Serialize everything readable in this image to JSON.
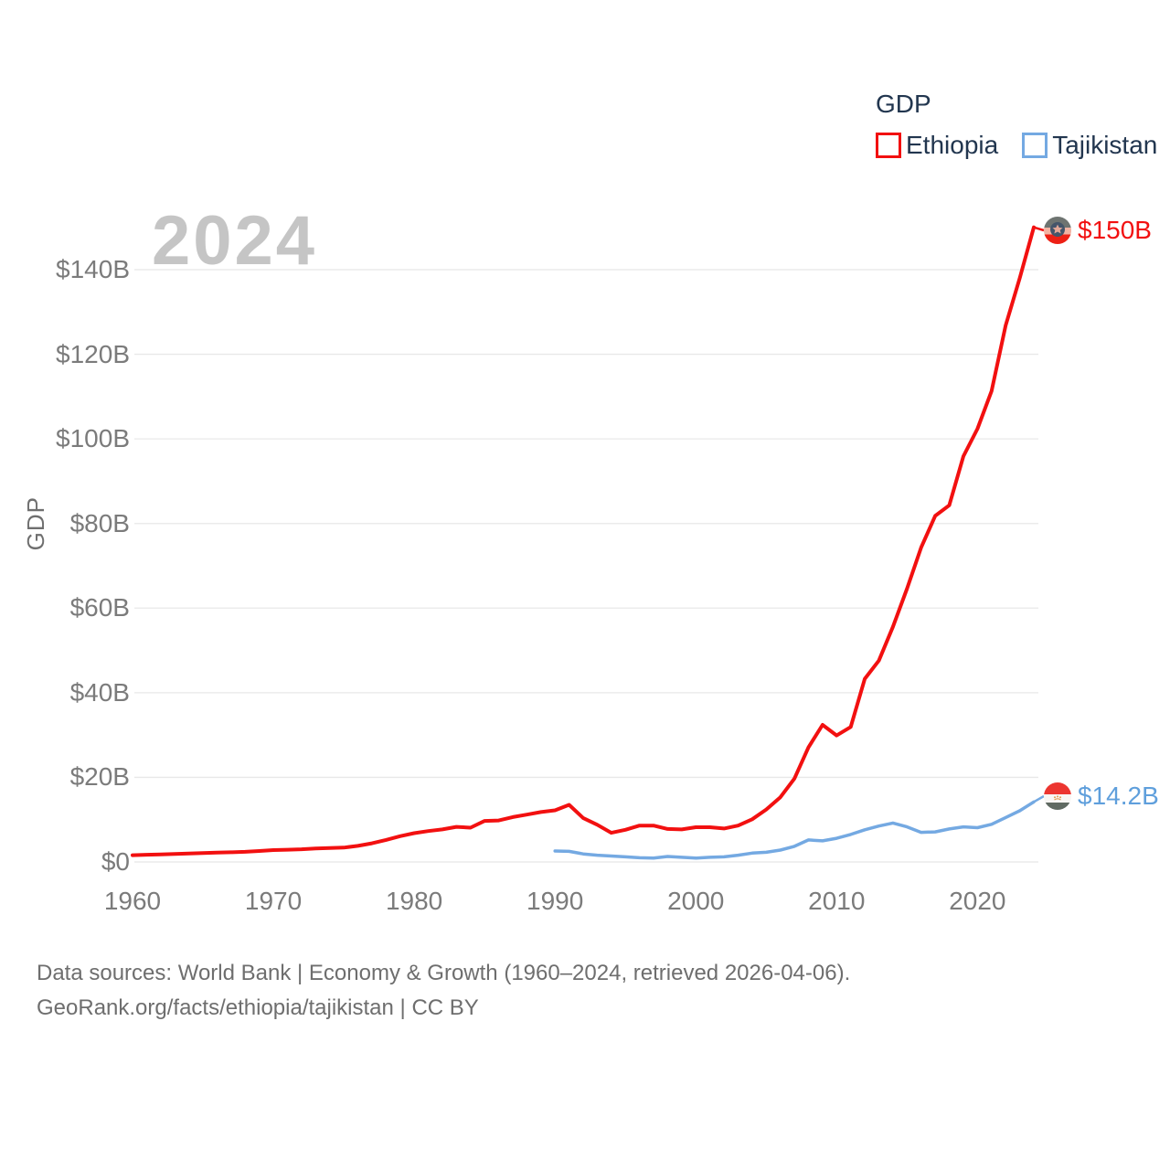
{
  "watermark": "2024",
  "legend": {
    "title": "GDP",
    "items": [
      {
        "label": "Ethiopia",
        "color": "#f21010"
      },
      {
        "label": "Tajikistan",
        "color": "#74a9e2"
      }
    ]
  },
  "y_axis": {
    "title": "GDP",
    "ticks": [
      "$0",
      "$20B",
      "$40B",
      "$60B",
      "$80B",
      "$100B",
      "$120B",
      "$140B"
    ]
  },
  "x_axis": {
    "ticks": [
      "1960",
      "1970",
      "1980",
      "1990",
      "2000",
      "2010",
      "2020"
    ]
  },
  "end_labels": [
    {
      "series": "Ethiopia",
      "text": "$150B",
      "color": "#f21010",
      "flag_icon": "ethiopia-flag"
    },
    {
      "series": "Tajikistan",
      "text": "$14.2B",
      "color": "#5f9fdc",
      "flag_icon": "tajikistan-flag"
    }
  ],
  "footer": {
    "line1": "Data sources: World Bank | Economy & Growth (1960–2024, retrieved 2026-04-06).",
    "line2": "GeoRank.org/facts/ethiopia/tajikistan | CC BY"
  },
  "chart_data": {
    "type": "line",
    "title": "GDP",
    "ylabel": "GDP",
    "xlim": [
      1960,
      2024
    ],
    "ylim": [
      0,
      150
    ],
    "grid": true,
    "legend_position": "top-right",
    "y_ticks_billions": [
      0,
      20,
      40,
      60,
      80,
      100,
      120,
      140
    ],
    "x_tick_years": [
      1960,
      1970,
      1980,
      1990,
      2000,
      2010,
      2020
    ],
    "units": "USD billions, current",
    "series": [
      {
        "name": "Ethiopia",
        "color": "#f21010",
        "start_year": 1960,
        "end_label": "$150B",
        "values_billions": [
          1.6,
          1.7,
          1.8,
          1.9,
          2.0,
          2.1,
          2.2,
          2.3,
          2.4,
          2.6,
          2.8,
          2.9,
          3.0,
          3.2,
          3.3,
          3.4,
          3.8,
          4.4,
          5.2,
          6.1,
          6.8,
          7.3,
          7.7,
          8.3,
          8.1,
          9.7,
          9.8,
          10.6,
          11.2,
          11.8,
          12.2,
          13.5,
          10.4,
          8.8,
          6.9,
          7.6,
          8.6,
          8.6,
          7.8,
          7.7,
          8.2,
          8.2,
          7.9,
          8.6,
          10.1,
          12.4,
          15.3,
          19.7,
          27.1,
          32.4,
          29.9,
          31.9,
          43.3,
          47.6,
          55.6,
          64.6,
          74.3,
          81.8,
          84.3,
          95.9,
          102.4,
          111.3,
          126.8,
          138.0,
          150.0
        ]
      },
      {
        "name": "Tajikistan",
        "color": "#74a9e2",
        "start_year": 1990,
        "end_label": "$14.2B",
        "values_billions": [
          2.6,
          2.5,
          1.9,
          1.6,
          1.4,
          1.2,
          1.0,
          0.9,
          1.3,
          1.1,
          0.9,
          1.1,
          1.2,
          1.6,
          2.1,
          2.3,
          2.8,
          3.7,
          5.2,
          5.0,
          5.6,
          6.5,
          7.6,
          8.5,
          9.2,
          8.3,
          7.0,
          7.1,
          7.8,
          8.3,
          8.1,
          8.9,
          10.5,
          12.1,
          14.2
        ]
      }
    ]
  }
}
